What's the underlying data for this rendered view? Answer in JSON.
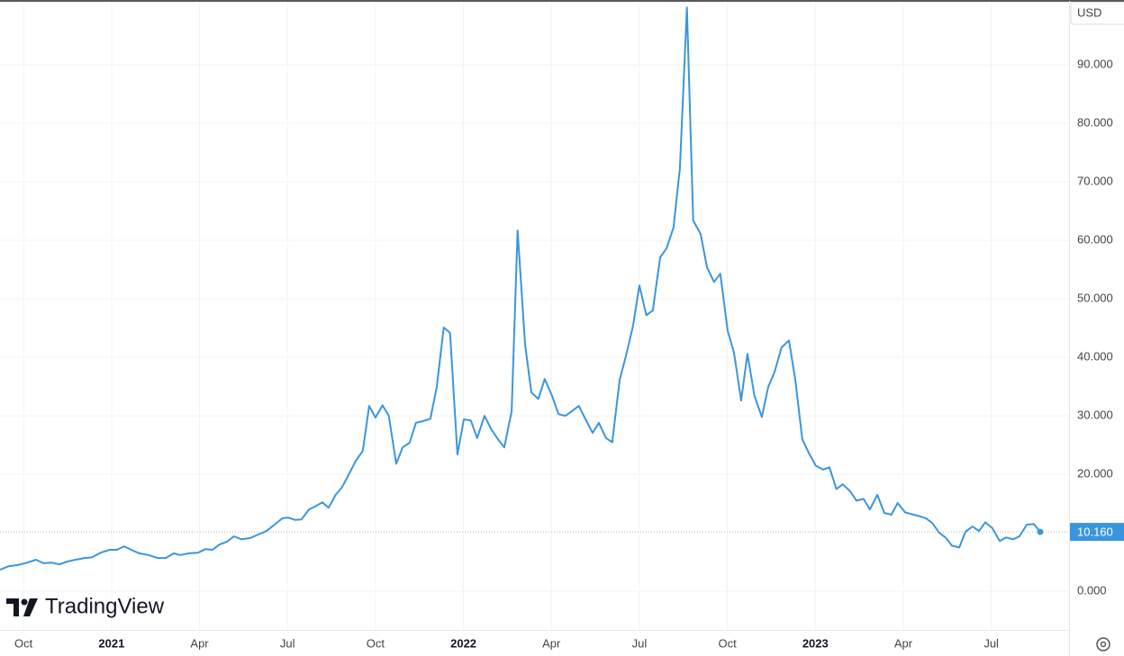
{
  "chart_data": {
    "type": "line",
    "currency": "USD",
    "watermark": "TradingView",
    "color": "#3b95de",
    "grid": true,
    "x": [
      2020.683,
      2020.708,
      2020.734,
      2020.76,
      2020.785,
      2020.806,
      2020.831,
      2020.852,
      2020.875,
      2020.898,
      2020.923,
      2020.944,
      2020.969,
      2020.995,
      2021.015,
      2021.036,
      2021.056,
      2021.079,
      2021.105,
      2021.131,
      2021.154,
      2021.177,
      2021.195,
      2021.22,
      2021.246,
      2021.266,
      2021.287,
      2021.307,
      2021.328,
      2021.348,
      2021.369,
      2021.394,
      2021.42,
      2021.44,
      2021.463,
      2021.486,
      2021.502,
      2021.522,
      2021.54,
      2021.561,
      2021.578,
      2021.599,
      2021.617,
      2021.637,
      2021.655,
      2021.676,
      2021.694,
      2021.714,
      2021.732,
      2021.75,
      2021.77,
      2021.788,
      2021.809,
      2021.827,
      2021.847,
      2021.865,
      2021.885,
      2021.906,
      2021.924,
      2021.944,
      2021.962,
      2021.983,
      2022.001,
      2022.021,
      2022.039,
      2022.06,
      2022.078,
      2022.098,
      2022.116,
      2022.137,
      2022.154,
      2022.175,
      2022.193,
      2022.213,
      2022.231,
      2022.252,
      2022.27,
      2022.29,
      2022.308,
      2022.328,
      2022.346,
      2022.367,
      2022.385,
      2022.405,
      2022.423,
      2022.444,
      2022.462,
      2022.482,
      2022.5,
      2022.52,
      2022.538,
      2022.559,
      2022.577,
      2022.597,
      2022.615,
      2022.635,
      2022.653,
      2022.674,
      2022.692,
      2022.712,
      2022.73,
      2022.751,
      2022.769,
      2022.789,
      2022.807,
      2022.827,
      2022.848,
      2022.866,
      2022.884,
      2022.904,
      2022.925,
      2022.943,
      2022.963,
      2022.981,
      2023.001,
      2023.022,
      2023.04,
      2023.06,
      2023.078,
      2023.099,
      2023.117,
      2023.137,
      2023.155,
      2023.176,
      2023.196,
      2023.216,
      2023.234,
      2023.255,
      2023.273,
      2023.293,
      2023.314,
      2023.332,
      2023.352,
      2023.37,
      2023.388,
      2023.409,
      2023.427,
      2023.447,
      2023.465,
      2023.483,
      2023.503,
      2023.524,
      2023.542,
      2023.562,
      2023.58,
      2023.601,
      2023.621,
      2023.639
    ],
    "values": [
      3.7,
      4.3,
      4.5,
      4.9,
      5.4,
      4.8,
      4.9,
      4.6,
      5.1,
      5.4,
      5.7,
      5.8,
      6.6,
      7.1,
      7.1,
      7.7,
      7.1,
      6.5,
      6.2,
      5.7,
      5.7,
      6.5,
      6.2,
      6.5,
      6.6,
      7.2,
      7.1,
      8.0,
      8.5,
      9.4,
      8.9,
      9.1,
      9.8,
      10.3,
      11.4,
      12.5,
      12.6,
      12.2,
      12.3,
      14.0,
      14.5,
      15.2,
      14.3,
      16.5,
      17.8,
      20.2,
      22.3,
      24.0,
      31.7,
      29.7,
      31.8,
      30.0,
      21.8,
      24.6,
      25.4,
      28.8,
      29.1,
      29.5,
      34.9,
      45.1,
      44.2,
      23.4,
      29.4,
      29.2,
      26.2,
      30.0,
      27.8,
      26.0,
      24.6,
      30.8,
      61.7,
      42.2,
      34.0,
      32.9,
      36.3,
      33.4,
      30.3,
      30.0,
      30.8,
      31.7,
      29.5,
      27.1,
      28.8,
      26.2,
      25.5,
      36.2,
      40.3,
      45.4,
      52.3,
      47.2,
      48.0,
      57.1,
      58.6,
      62.2,
      72.3,
      99.8,
      63.4,
      61.1,
      55.4,
      52.9,
      54.3,
      44.5,
      40.8,
      32.6,
      40.6,
      33.4,
      29.8,
      34.9,
      37.5,
      41.7,
      42.9,
      36.2,
      26.0,
      23.7,
      21.5,
      20.8,
      21.2,
      17.5,
      18.3,
      17.1,
      15.5,
      15.8,
      14.0,
      16.5,
      13.4,
      13.1,
      15.1,
      13.5,
      13.2,
      12.9,
      12.5,
      11.7,
      10.0,
      9.2,
      7.8,
      7.5,
      10.2,
      11.1,
      10.3,
      11.8,
      10.8,
      8.6,
      9.2,
      8.9,
      9.4,
      11.4,
      11.5,
      10.16
    ],
    "last_price": {
      "value": 10.16,
      "label": "10.160"
    },
    "xlim": [
      2020.683,
      2023.721
    ],
    "xticks": [
      {
        "value": 2020.75,
        "label": "Oct"
      },
      2021,
      {
        "value": 2021.25,
        "label": "Apr"
      },
      {
        "value": 2021.5,
        "label": "Jul"
      },
      {
        "value": 2021.75,
        "label": "Oct"
      },
      2022,
      {
        "value": 2022.25,
        "label": "Apr"
      },
      {
        "value": 2022.5,
        "label": "Jul"
      },
      {
        "value": 2022.75,
        "label": "Oct"
      },
      2023,
      {
        "value": 2023.25,
        "label": "Apr"
      },
      {
        "value": 2023.5,
        "label": "Jul"
      }
    ],
    "ylim": [
      -6.6,
      101.1
    ],
    "yticks": [
      {
        "value": 0,
        "label": "0.000"
      },
      {
        "value": 20,
        "label": "20.000"
      },
      {
        "value": 30,
        "label": "30.000"
      },
      {
        "value": 40,
        "label": "40.000"
      },
      {
        "value": 50,
        "label": "50.000"
      },
      {
        "value": 60,
        "label": "60.000"
      },
      {
        "value": 70,
        "label": "70.000"
      },
      {
        "value": 80,
        "label": "80.000"
      },
      {
        "value": 90,
        "label": "90.000"
      }
    ]
  }
}
